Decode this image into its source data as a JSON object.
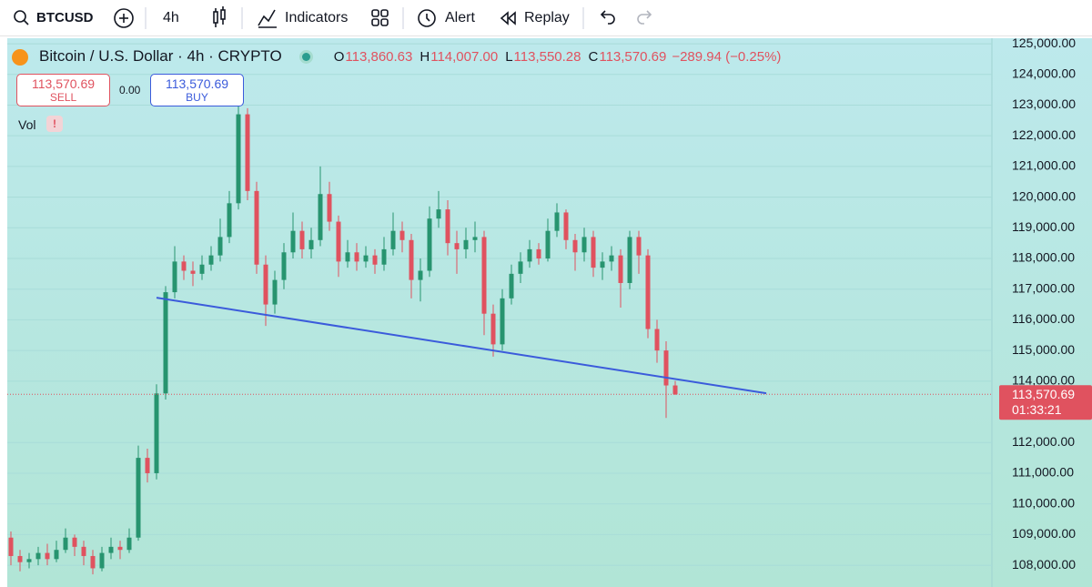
{
  "toolbar": {
    "symbol": "BTCUSD",
    "interval": "4h",
    "indicators": "Indicators",
    "alert": "Alert",
    "replay": "Replay"
  },
  "chart_data": {
    "type": "candlestick",
    "title": "Bitcoin / U.S. Dollar · 4h · CRYPTO",
    "ohlc_legend": [
      {
        "key": "O",
        "label": "113,860.63"
      },
      {
        "key": "H",
        "label": "114,007.00"
      },
      {
        "key": "L",
        "label": "113,550.28"
      },
      {
        "key": "C",
        "label": "113,570.69"
      }
    ],
    "change": "−289.94 (−0.25%)",
    "trade": {
      "sell": {
        "price": "113,570.69",
        "label": "SELL"
      },
      "spread": "0.00",
      "buy": {
        "price": "113,570.69",
        "label": "BUY"
      }
    },
    "volume_label": "Vol",
    "open": [
      108900,
      108300,
      108100,
      108200,
      108400,
      108200,
      108500,
      108900,
      108600,
      108300,
      107900,
      108400,
      108600,
      108500,
      108900,
      111500,
      111000,
      113600,
      116900,
      117900,
      117600,
      117500,
      117800,
      118100,
      118700,
      119800,
      122700,
      120200,
      117800,
      116500,
      117300,
      118200,
      118900,
      118300,
      118600,
      120100,
      119200,
      117900,
      118200,
      117900,
      118100,
      117800,
      118300,
      118900,
      118600,
      117300,
      117600,
      119300,
      119600,
      118500,
      118300,
      118600,
      118700,
      116200,
      115200,
      116700,
      117500,
      117900,
      118300,
      118000,
      118900,
      119500,
      118600,
      118200,
      118700,
      117700,
      117900,
      118100,
      117200,
      118700,
      118100,
      115700,
      115000,
      113860.63
    ],
    "high": [
      109100,
      108500,
      108400,
      108600,
      108700,
      108800,
      109200,
      109000,
      108800,
      108500,
      108600,
      108900,
      108800,
      109200,
      111900,
      111800,
      113900,
      117100,
      118400,
      118100,
      117900,
      118100,
      118400,
      119300,
      120200,
      123000,
      122900,
      120500,
      118100,
      117600,
      118500,
      119500,
      119200,
      119000,
      121000,
      120500,
      119400,
      118600,
      118500,
      118400,
      118300,
      118700,
      119500,
      119200,
      118800,
      118000,
      119700,
      120200,
      119900,
      118900,
      119000,
      119200,
      118900,
      116500,
      117000,
      117800,
      118200,
      118600,
      118500,
      119300,
      119800,
      119600,
      118800,
      119000,
      118900,
      118200,
      118400,
      118300,
      118900,
      118900,
      118300,
      116000,
      115300,
      114007
    ],
    "low": [
      108000,
      107800,
      107900,
      108000,
      108000,
      108100,
      108400,
      108300,
      108000,
      107700,
      107800,
      108200,
      108200,
      108400,
      108800,
      110700,
      110800,
      113400,
      116700,
      117300,
      117100,
      117300,
      117600,
      117900,
      118500,
      119600,
      119900,
      117500,
      115800,
      116200,
      117000,
      118000,
      118000,
      118000,
      118400,
      118900,
      117400,
      117700,
      117600,
      117700,
      117500,
      117600,
      118100,
      118200,
      116700,
      116600,
      117400,
      119000,
      118100,
      117500,
      118000,
      118200,
      115500,
      114800,
      115000,
      116500,
      117200,
      117700,
      117800,
      117900,
      118700,
      118300,
      117600,
      117900,
      117400,
      117300,
      117600,
      116400,
      117000,
      117500,
      115400,
      114600,
      112800,
      113550.28
    ],
    "close": [
      108300,
      108100,
      108200,
      108400,
      108200,
      108500,
      108900,
      108600,
      108300,
      107900,
      108400,
      108600,
      108500,
      108900,
      111500,
      111000,
      113600,
      116900,
      117900,
      117600,
      117500,
      117800,
      118100,
      118700,
      119800,
      122700,
      120200,
      117800,
      116500,
      117300,
      118200,
      118900,
      118300,
      118600,
      120100,
      119200,
      117900,
      118200,
      117900,
      118100,
      117800,
      118300,
      118900,
      118600,
      117300,
      117600,
      119300,
      119600,
      118500,
      118300,
      118600,
      118700,
      116200,
      115200,
      116700,
      117500,
      117900,
      118300,
      118000,
      118900,
      119500,
      118600,
      118200,
      118700,
      117700,
      117900,
      118100,
      117200,
      118700,
      118100,
      115700,
      115000,
      113860.63,
      113570.69
    ],
    "up_color": "#27946f",
    "down_color": "#e0525f",
    "trendline": {
      "color": "#3b5bdb",
      "values": [
        116720,
        113605
      ]
    },
    "last_price": {
      "value": 113570.69,
      "label": "113,570.69",
      "countdown": "01:33:21",
      "color": "#e0525f"
    },
    "ylim": [
      107290,
      125180
    ],
    "yticks": [
      {
        "value": 108000,
        "label": "108,000.00"
      },
      {
        "value": 109000,
        "label": "109,000.00"
      },
      {
        "value": 110000,
        "label": "110,000.00"
      },
      {
        "value": 111000,
        "label": "111,000.00"
      },
      {
        "value": 112000,
        "label": "112,000.00"
      },
      {
        "value": 114000,
        "label": "114,000.00"
      },
      {
        "value": 115000,
        "label": "115,000.00"
      },
      {
        "value": 116000,
        "label": "116,000.00"
      },
      {
        "value": 117000,
        "label": "117,000.00"
      },
      {
        "value": 118000,
        "label": "118,000.00"
      },
      {
        "value": 119000,
        "label": "119,000.00"
      },
      {
        "value": 120000,
        "label": "120,000.00"
      },
      {
        "value": 121000,
        "label": "121,000.00"
      },
      {
        "value": 122000,
        "label": "122,000.00"
      },
      {
        "value": 123000,
        "label": "123,000.00"
      },
      {
        "value": 124000,
        "label": "124,000.00"
      },
      {
        "value": 125000,
        "label": "125,000.00"
      }
    ],
    "grid": true
  }
}
